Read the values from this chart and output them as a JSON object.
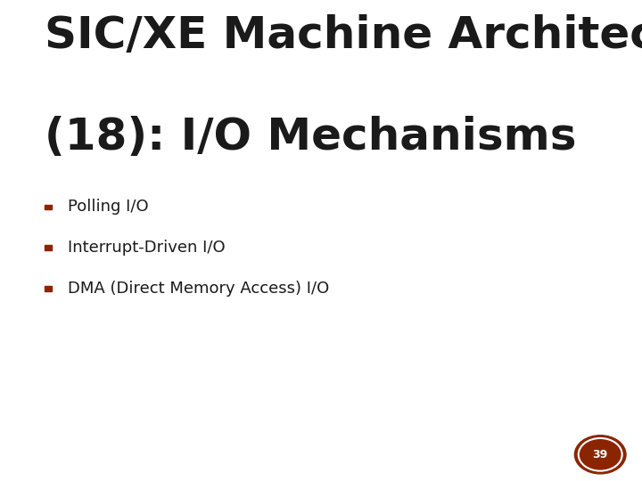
{
  "title_line1": "SIC/XE Machine Architecture",
  "title_line2": "(18): I/O Mechanisms",
  "bullet_items": [
    "Polling I/O",
    "Interrupt-Driven I/O",
    "DMA (Direct Memory Access) I/O"
  ],
  "background_color": "#ffffff",
  "title_color": "#1a1a1a",
  "bullet_text_color": "#1a1a1a",
  "bullet_square_color": "#8b2500",
  "title_fontsize": 36,
  "bullet_fontsize": 13,
  "page_number": "39",
  "page_circle_bg": "#8b2500",
  "page_circle_ring": "#ffffff",
  "page_number_color": "#ffffff"
}
